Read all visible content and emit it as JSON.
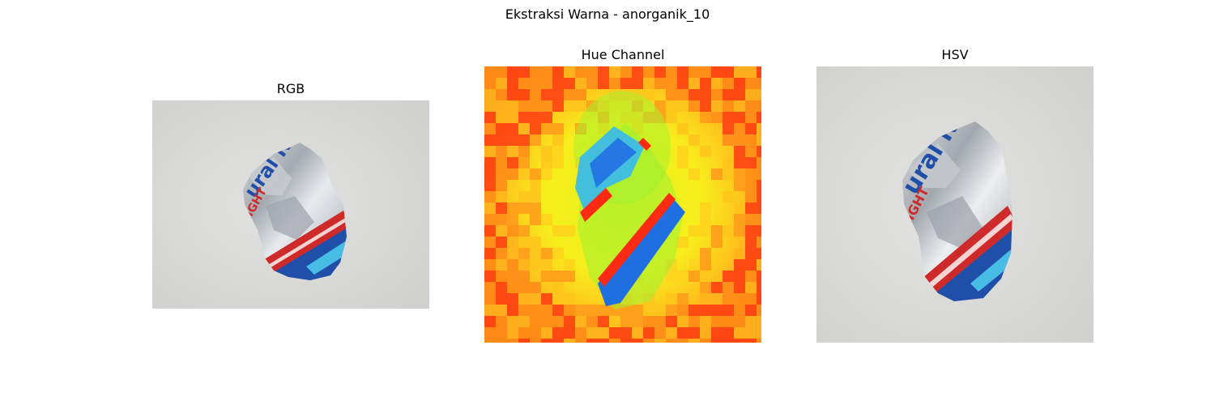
{
  "figure": {
    "suptitle": "Ekstraksi Warna - anorganik_10"
  },
  "panels": [
    {
      "title": "RGB",
      "content": "crumpled aluminum can photo (RGB view)"
    },
    {
      "title": "Hue Channel",
      "content": "hue channel false-color map of the can"
    },
    {
      "title": "HSV",
      "content": "crumpled aluminum can photo (HSV rendered)"
    }
  ],
  "colors": {
    "background_gray": "#d9d9d7",
    "can_silver": "#b9bcc0",
    "can_blue": "#1f4fa8",
    "stripe_red": "#cf2a2a",
    "hue_orange": "#ff9a1a",
    "hue_yellow": "#f7f21e",
    "hue_green": "#9cf032",
    "hue_cyan": "#35b9f0",
    "hue_red": "#ff2a12"
  }
}
